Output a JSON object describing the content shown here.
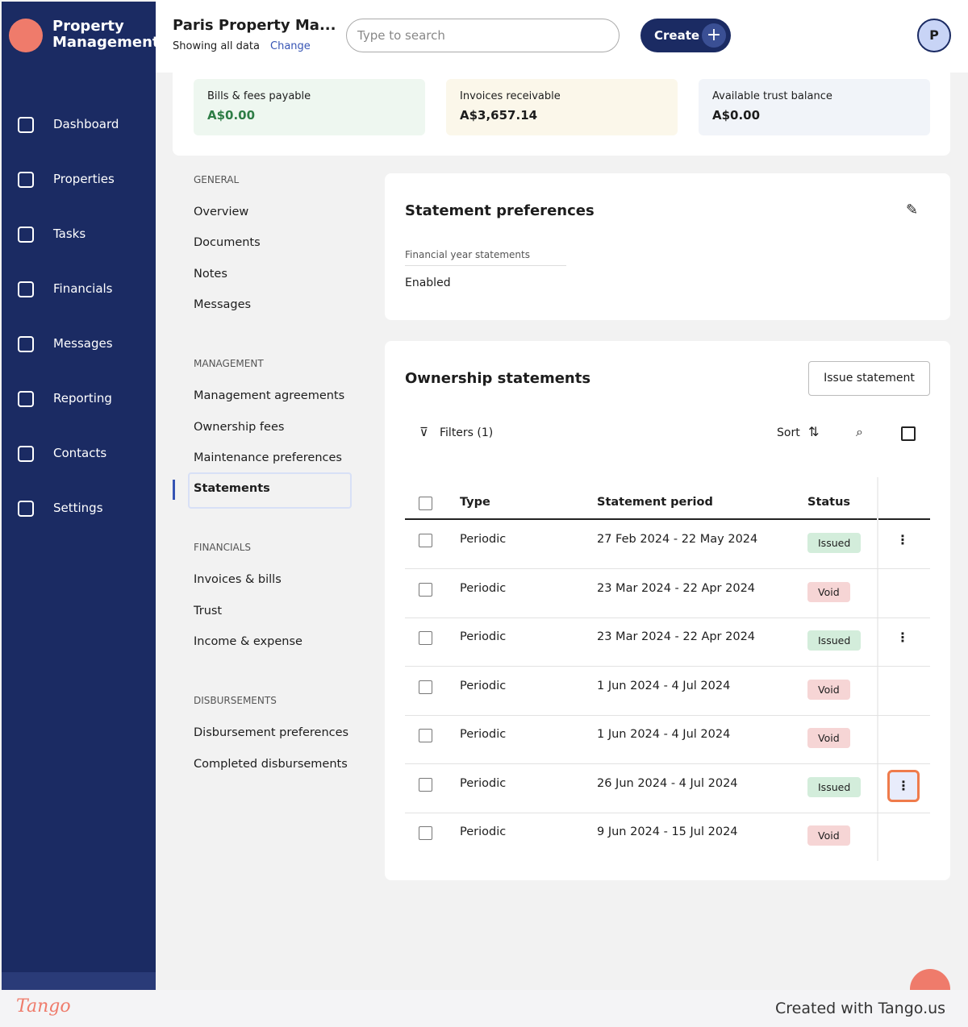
{
  "brand": {
    "line1": "Property",
    "line2": "Management"
  },
  "nav": [
    "Dashboard",
    "Properties",
    "Tasks",
    "Financials",
    "Messages",
    "Reporting",
    "Contacts",
    "Settings"
  ],
  "header": {
    "title": "Paris Property Ma...",
    "subtitle": "Showing all data",
    "change": "Change",
    "search_placeholder": "Type to search",
    "create": "Create",
    "avatar": "P"
  },
  "summary": [
    {
      "label": "Bills & fees payable",
      "value": "A$0.00",
      "color": "#eef7f0",
      "value_color": "#2e7d46"
    },
    {
      "label": "Invoices receivable",
      "value": "A$3,657.14",
      "color": "#fbf7ea",
      "value_color": "#1d1d1d"
    },
    {
      "label": "Available trust balance",
      "value": "A$0.00",
      "color": "#f1f4f9",
      "value_color": "#1d1d1d"
    }
  ],
  "side_sections": [
    {
      "heading": "GENERAL",
      "items": [
        "Overview",
        "Documents",
        "Notes",
        "Messages"
      ]
    },
    {
      "heading": "MANAGEMENT",
      "items": [
        "Management agreements",
        "Ownership fees",
        "Maintenance preferences",
        "Statements"
      ]
    },
    {
      "heading": "FINANCIALS",
      "items": [
        "Invoices & bills",
        "Trust",
        "Income & expense"
      ]
    },
    {
      "heading": "DISBURSEMENTS",
      "items": [
        "Disbursement preferences",
        "Completed disbursements"
      ]
    }
  ],
  "preferences": {
    "title": "Statement preferences",
    "field_label": "Financial year statements",
    "field_value": "Enabled"
  },
  "statements": {
    "title": "Ownership statements",
    "issue_button": "Issue statement",
    "filters": "Filters (1)",
    "sort": "Sort",
    "columns": [
      "Type",
      "Statement period",
      "Status"
    ],
    "rows": [
      {
        "type": "Periodic",
        "period": "27 Feb 2024 - 22 May 2024",
        "status": "Issued",
        "status_color": "#d3eddb",
        "menu": true
      },
      {
        "type": "Periodic",
        "period": "23 Mar 2024 - 22 Apr 2024",
        "status": "Void",
        "status_color": "#f6d5d5",
        "menu": false
      },
      {
        "type": "Periodic",
        "period": "23 Mar 2024 - 22 Apr 2024",
        "status": "Issued",
        "status_color": "#d3eddb",
        "menu": true
      },
      {
        "type": "Periodic",
        "period": "1 Jun 2024 - 4 Jul 2024",
        "status": "Void",
        "status_color": "#f6d5d5",
        "menu": false
      },
      {
        "type": "Periodic",
        "period": "1 Jun 2024 - 4 Jul 2024",
        "status": "Void",
        "status_color": "#f6d5d5",
        "menu": false
      },
      {
        "type": "Periodic",
        "period": "26 Jun 2024 - 4 Jul 2024",
        "status": "Issued",
        "status_color": "#d3eddb",
        "menu": true
      },
      {
        "type": "Periodic",
        "period": "9 Jun 2024 - 15 Jul 2024",
        "status": "Void",
        "status_color": "#f6d5d5",
        "menu": false
      }
    ]
  },
  "footer": {
    "brand": "Tango",
    "credit": "Created with Tango.us"
  }
}
